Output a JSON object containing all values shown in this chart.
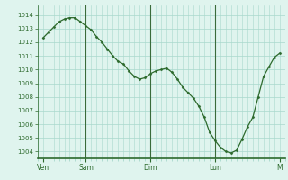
{
  "background_color": "#dff4ee",
  "line_color": "#2d6a2d",
  "marker_color": "#2d6a2d",
  "grid_color": "#a8d8cc",
  "axis_color": "#2d6a2d",
  "vline_color": "#3a6b3a",
  "ylim": [
    1003.5,
    1014.7
  ],
  "yticks": [
    1004,
    1005,
    1006,
    1007,
    1008,
    1009,
    1010,
    1011,
    1012,
    1013,
    1014
  ],
  "day_labels": [
    "Ven",
    "Sam",
    "Dim",
    "Lun",
    "M"
  ],
  "day_positions": [
    0,
    8,
    20,
    32,
    44
  ],
  "xlim": [
    -1,
    45
  ],
  "x": [
    0,
    1,
    2,
    3,
    4,
    5,
    6,
    7,
    8,
    9,
    10,
    11,
    12,
    13,
    14,
    15,
    16,
    17,
    18,
    19,
    20,
    21,
    22,
    23,
    24,
    25,
    26,
    27,
    28,
    29,
    30,
    31,
    32,
    33,
    34,
    35,
    36,
    37,
    38,
    39,
    40,
    41,
    42,
    43,
    44
  ],
  "y": [
    1012.3,
    1012.7,
    1013.1,
    1013.5,
    1013.7,
    1013.8,
    1013.8,
    1013.5,
    1013.2,
    1012.9,
    1012.4,
    1012.0,
    1011.5,
    1011.0,
    1010.6,
    1010.4,
    1009.9,
    1009.5,
    1009.3,
    1009.4,
    1009.7,
    1009.9,
    1010.0,
    1010.1,
    1009.8,
    1009.3,
    1008.7,
    1008.3,
    1007.9,
    1007.3,
    1006.5,
    1005.4,
    1004.8,
    1004.3,
    1004.0,
    1003.9,
    1004.1,
    1004.9,
    1005.8,
    1006.5,
    1008.0,
    1009.5,
    1010.2,
    1010.9,
    1011.2
  ]
}
